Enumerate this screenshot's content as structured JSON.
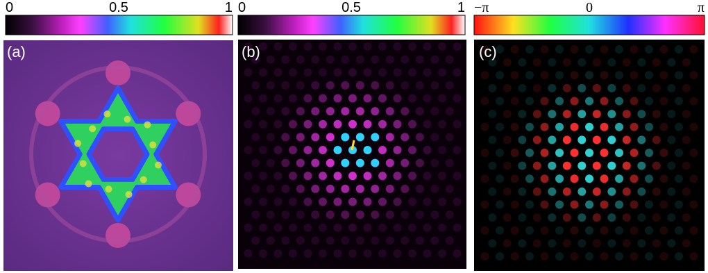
{
  "panels": [
    {
      "label": "(a)",
      "colorbar_ticks": [
        "0",
        "0.5",
        "1"
      ]
    },
    {
      "label": "(b)",
      "colorbar_ticks": [
        "0",
        "0.5",
        "1"
      ]
    },
    {
      "label": "(c)",
      "colorbar_ticks": [
        "−π",
        "0",
        "π"
      ]
    }
  ]
}
